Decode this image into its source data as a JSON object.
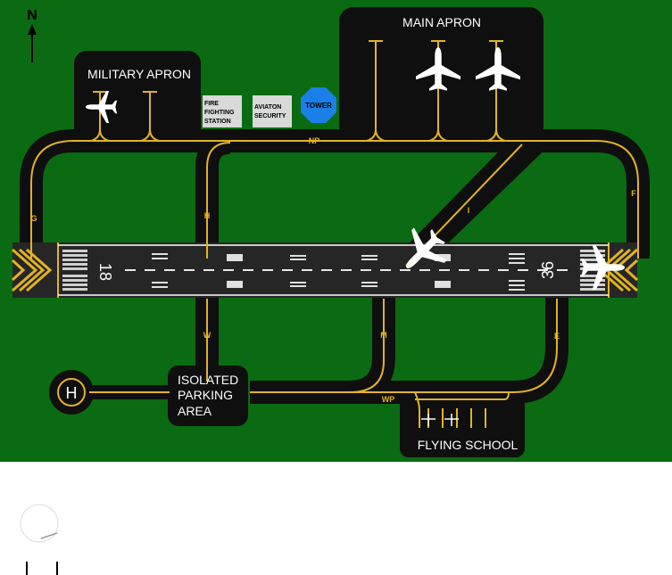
{
  "map": {
    "north_label": "N",
    "runway": {
      "left_designator": "18",
      "right_designator": "36"
    },
    "aprons": {
      "military": "MILITARY APRON",
      "main": "MAIN APRON",
      "isolated_line1": "ISOLATED",
      "isolated_line2": "PARKING",
      "isolated_line3": "AREA",
      "flying_school": "FLYING SCHOOL"
    },
    "buildings": {
      "fire_line1": "FIRE",
      "fire_line2": "FIGHTING",
      "fire_line3": "STATION",
      "security_line1": "AVIATON",
      "security_line2": "SECURITY",
      "tower": "TOWER"
    },
    "helipad": "H",
    "taxiways": {
      "np": "NP",
      "g": "G",
      "h": "H",
      "i": "I",
      "f": "F",
      "w": "W",
      "m": "M",
      "e": "E",
      "wp": "WP"
    },
    "colors": {
      "grass": "#0b6b12",
      "pavement": "#0f0f0f",
      "runway": "#262626",
      "taxi_line": "#e3b323",
      "tower": "#1a7fe6",
      "building": "#d9d9d9"
    },
    "icons": [
      "north-arrow-icon",
      "airplane-icon",
      "small-aircraft-icon",
      "helipad-icon"
    ]
  }
}
